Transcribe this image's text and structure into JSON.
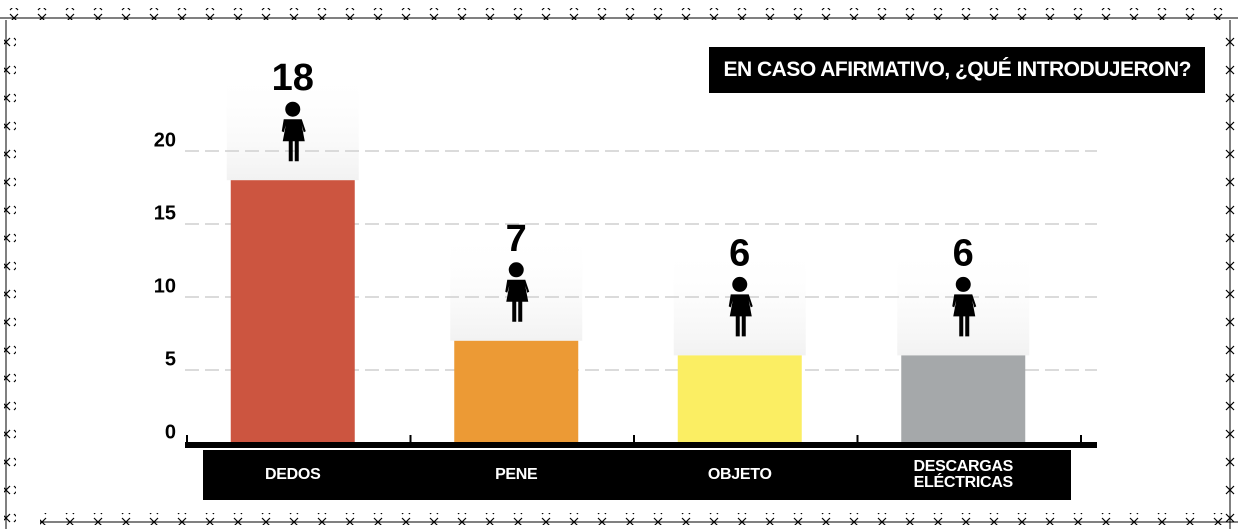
{
  "chart_data": {
    "type": "bar",
    "title": "EN CASO AFIRMATIVO, ¿QUÉ INTRODUJERON?",
    "categories": [
      "DEDOS",
      "PENE",
      "OBJETO",
      "DESCARGAS ELÉCTRICAS"
    ],
    "values": [
      18,
      7,
      6,
      6
    ],
    "colors": [
      "#cc5540",
      "#ec9a35",
      "#fbee63",
      "#a5a8aa"
    ],
    "ylim": [
      0,
      20
    ],
    "yticks": [
      0,
      5,
      10,
      15,
      20
    ],
    "grid": true
  }
}
